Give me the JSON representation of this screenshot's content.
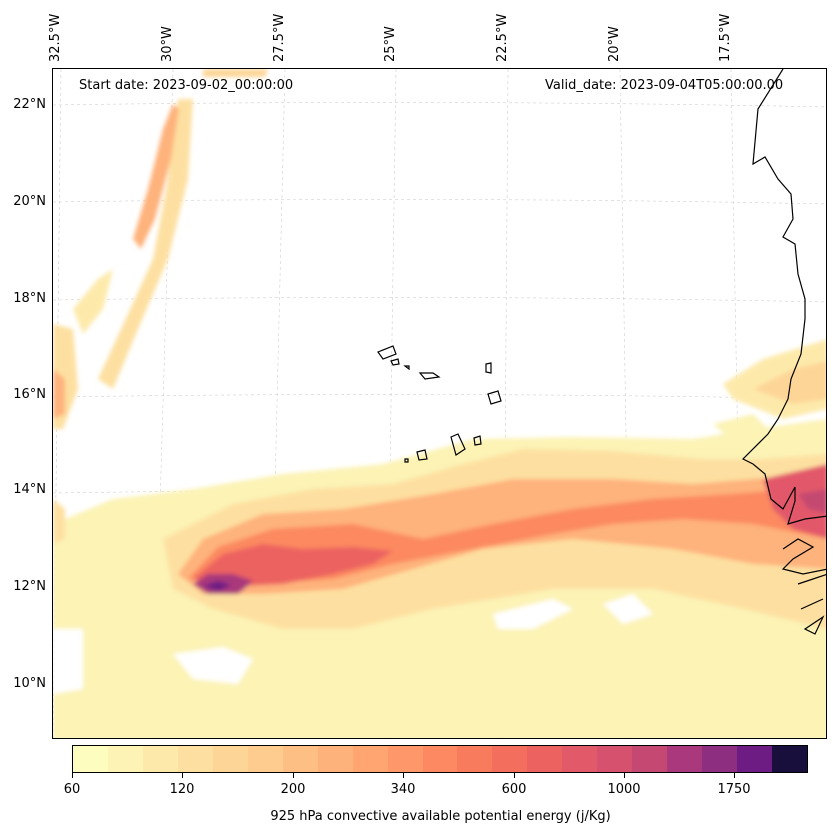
{
  "map": {
    "start_date": "Start date: 2023-09-02_00:00:00",
    "valid_date": "Valid_date: 2023-09-04T05:00:00.00",
    "lon_labels": [
      "32.5°W",
      "30°W",
      "27.5°W",
      "25°W",
      "22.5°W",
      "20°W",
      "17.5°W"
    ],
    "lat_labels": [
      "22°N",
      "20°N",
      "18°N",
      "16°N",
      "14°N",
      "12°N",
      "10°N"
    ],
    "variable": "925 hPa convective available potential energy",
    "field_type": "filled contour",
    "coastline_color": "#000000",
    "gridlines": "dashed light gray"
  },
  "colorbar": {
    "title": "925 hPa convective available potential energy (j/Kg)",
    "tick_labels": [
      "60",
      "120",
      "200",
      "340",
      "600",
      "1000",
      "1750"
    ],
    "colors": [
      "#fcfdbf",
      "#fcf3b5",
      "#fdeaab",
      "#fde0a1",
      "#fdd697",
      "#fecc8f",
      "#febf84",
      "#feb27b",
      "#fea572",
      "#fe976a",
      "#fc8961",
      "#f97b5d",
      "#f46e5d",
      "#ec6260",
      "#e2596a",
      "#d5516d",
      "#c44871",
      "#a9397c",
      "#8e2e81",
      "#6d1c84",
      "#180f3d"
    ]
  }
}
